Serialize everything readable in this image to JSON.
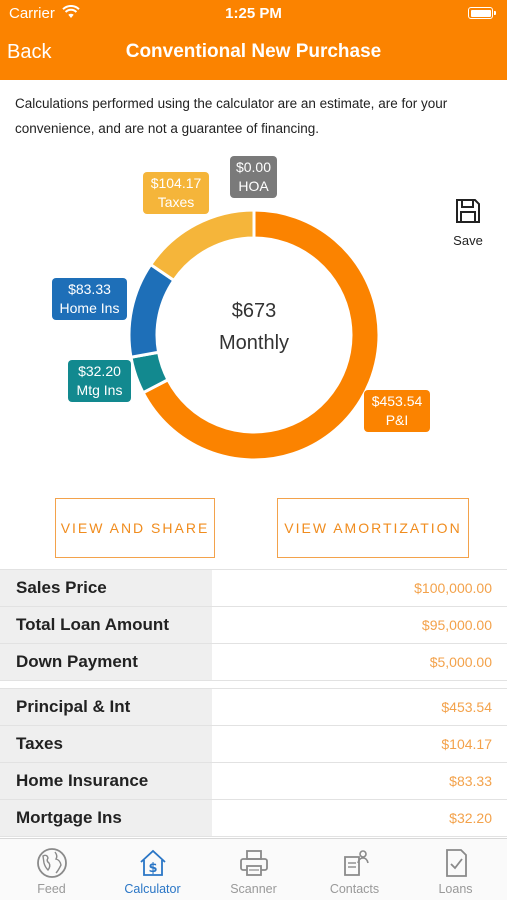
{
  "status_bar": {
    "carrier": "Carrier",
    "time": "1:25 PM"
  },
  "nav": {
    "back": "Back",
    "title": "Conventional New Purchase"
  },
  "disclaimer": "Calculations performed using the calculator are an estimate, are for your convenience, and are not a guarantee of financing.",
  "chart_data": {
    "type": "pie",
    "style": "donut",
    "center_amount": "$673",
    "center_label": "Monthly",
    "slices": [
      {
        "label": "P&I",
        "value": 453.54,
        "display": "$453.54",
        "color": "#fb8300"
      },
      {
        "label": "Mtg Ins",
        "value": 32.2,
        "display": "$32.20",
        "color": "#12898f"
      },
      {
        "label": "Home Ins",
        "value": 83.33,
        "display": "$83.33",
        "color": "#1e6fb8"
      },
      {
        "label": "Taxes",
        "value": 104.17,
        "display": "$104.17",
        "color": "#f5b53a"
      },
      {
        "label": "HOA",
        "value": 0.0,
        "display": "$0.00",
        "color": "#7a7a7a"
      }
    ]
  },
  "save": {
    "label": "Save",
    "icon": "floppy-disk-icon"
  },
  "buttons": {
    "share": "VIEW AND SHARE",
    "amortization": "VIEW AMORTIZATION"
  },
  "loan_rows": [
    {
      "label": "Sales Price",
      "value": "$100,000.00"
    },
    {
      "label": "Total Loan Amount",
      "value": "$95,000.00"
    },
    {
      "label": "Down Payment",
      "value": "$5,000.00"
    }
  ],
  "payment_rows": [
    {
      "label": "Principal & Int",
      "value": "$453.54"
    },
    {
      "label": "Taxes",
      "value": "$104.17"
    },
    {
      "label": "Home Insurance",
      "value": "$83.33"
    },
    {
      "label": "Mortgage Ins",
      "value": "$32.20"
    }
  ],
  "tabs": [
    {
      "label": "Feed",
      "icon": "globe-icon"
    },
    {
      "label": "Calculator",
      "icon": "calculator-house-icon",
      "active": true
    },
    {
      "label": "Scanner",
      "icon": "printer-icon"
    },
    {
      "label": "Contacts",
      "icon": "contacts-icon"
    },
    {
      "label": "Loans",
      "icon": "document-check-icon"
    }
  ],
  "colors": {
    "accent": "#fb8300",
    "value_text": "#f3a24b",
    "active_tab": "#2a76c6"
  }
}
